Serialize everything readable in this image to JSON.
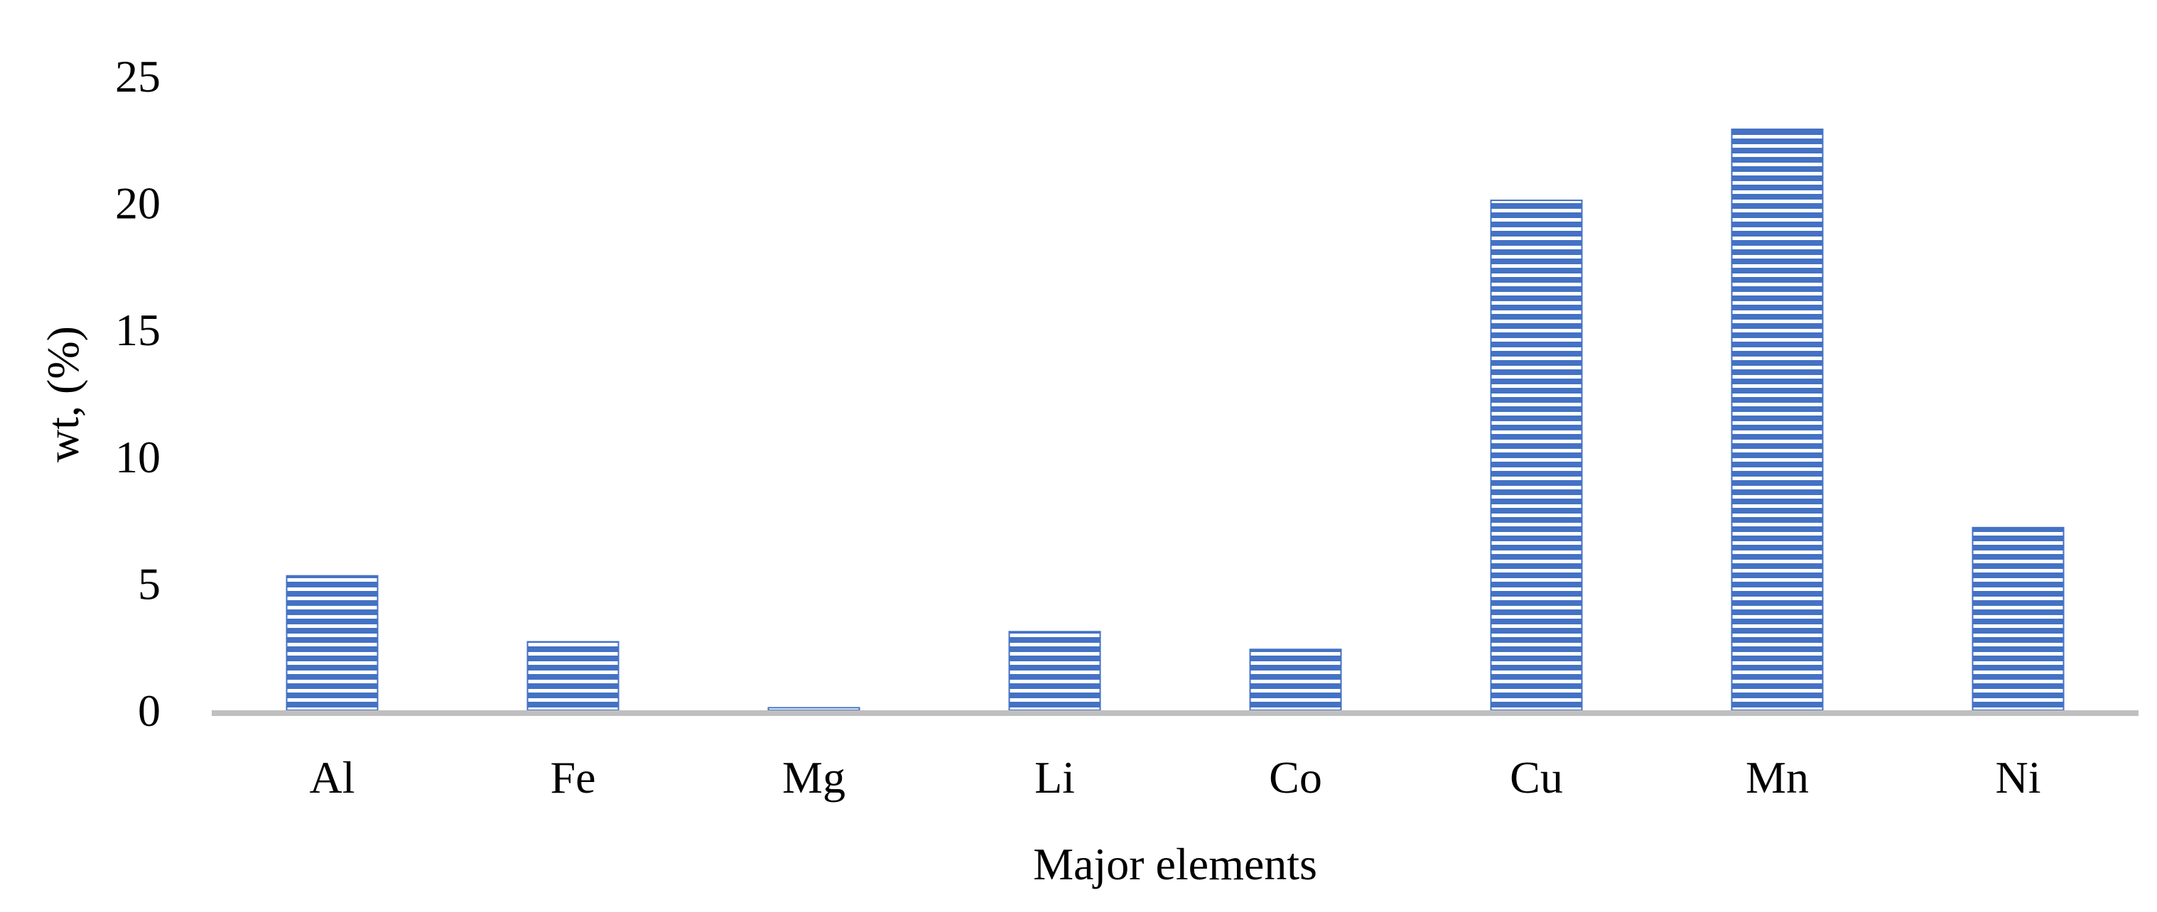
{
  "chart_data": {
    "type": "bar",
    "title": "",
    "xlabel": "Major elements",
    "ylabel": "wt, (%)",
    "categories": [
      "Al",
      "Fe",
      "Mg",
      "Li",
      "Co",
      "Cu",
      "Mn",
      "Ni"
    ],
    "values": [
      5.3,
      2.7,
      0.1,
      3.1,
      2.4,
      20.1,
      22.9,
      7.2
    ],
    "ylim": [
      0,
      25
    ],
    "yticks": [
      "0",
      "5",
      "10",
      "15",
      "20",
      "25"
    ],
    "grid": false,
    "legend": "none",
    "bar_color": "#4472c4",
    "bar_pattern": "horizontal-stripes",
    "axis_color": "#bfbfbf"
  }
}
